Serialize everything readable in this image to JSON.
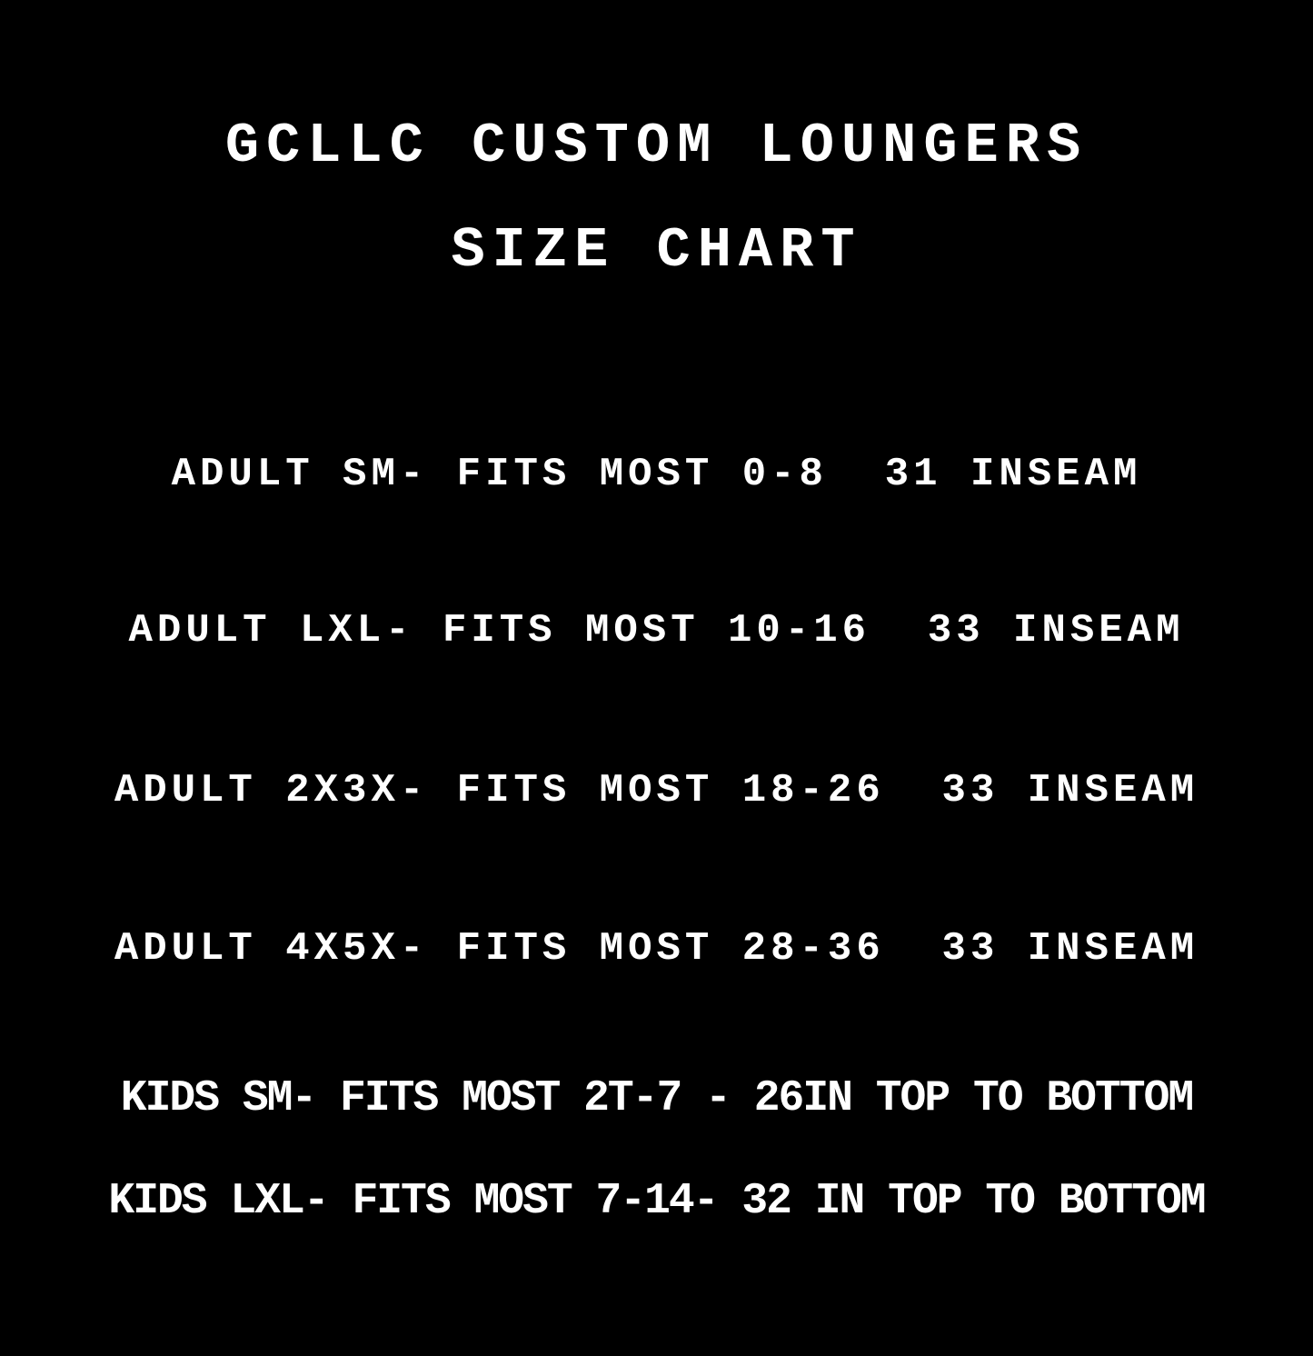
{
  "title": {
    "line1": "GCLLC CUSTOM LOUNGERS",
    "line2": "SIZE CHART"
  },
  "sizes": [
    "ADULT SM- FITS MOST 0-8  31 INSEAM",
    "ADULT LXL- FITS MOST 10-16  33 INSEAM",
    "ADULT 2X3X- FITS MOST 18-26  33 INSEAM",
    "ADULT 4X5X- FITS MOST 28-36  33 INSEAM",
    "KIDS SM- FITS MOST 2T-7 - 26IN TOP TO BOTTOM",
    "KIDS LXL- FITS MOST 7-14- 32 IN TOP TO BOTTOM"
  ],
  "colors": {
    "background": "#000000",
    "text": "#ffffff"
  }
}
